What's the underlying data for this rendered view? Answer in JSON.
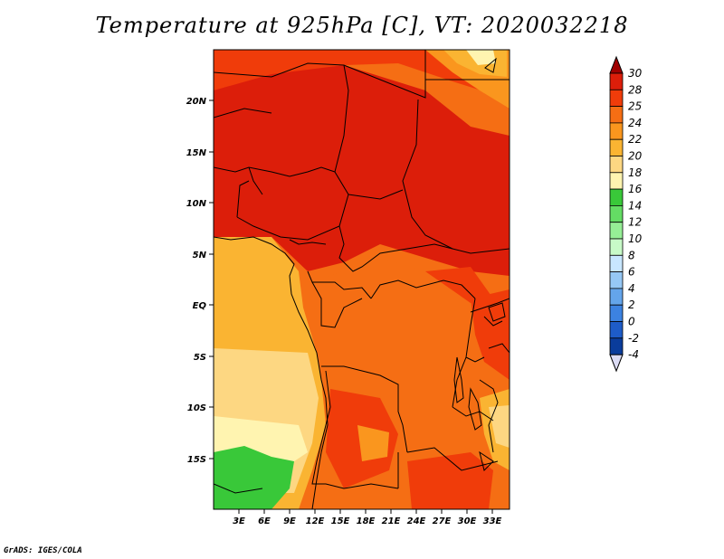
{
  "title": "Temperature at 925hPa [C], VT: 2020032218",
  "credit": "GrADS: IGES/COLA",
  "map": {
    "lon_labels": [
      "3E",
      "6E",
      "9E",
      "12E",
      "15E",
      "18E",
      "21E",
      "24E",
      "27E",
      "30E",
      "33E"
    ],
    "lat_labels": [
      "20N",
      "15N",
      "10N",
      "5N",
      "EQ",
      "5S",
      "10S",
      "15S"
    ]
  },
  "colorbar": {
    "levels": [
      "30",
      "28",
      "25",
      "24",
      "22",
      "20",
      "18",
      "16",
      "14",
      "12",
      "10",
      "8",
      "6",
      "4",
      "2",
      "0",
      "-2",
      "-4"
    ],
    "colors": [
      "#a00000",
      "#dc1e0a",
      "#f03c0a",
      "#f56e14",
      "#fa961e",
      "#fab432",
      "#fdd782",
      "#fff4b0",
      "#39c839",
      "#64dc64",
      "#96ee96",
      "#c8fac8",
      "#c8e6ff",
      "#96c8f5",
      "#64a5eb",
      "#3c82e1",
      "#1e5cc8",
      "#0a3c9b",
      "#0a0a6e"
    ]
  }
}
